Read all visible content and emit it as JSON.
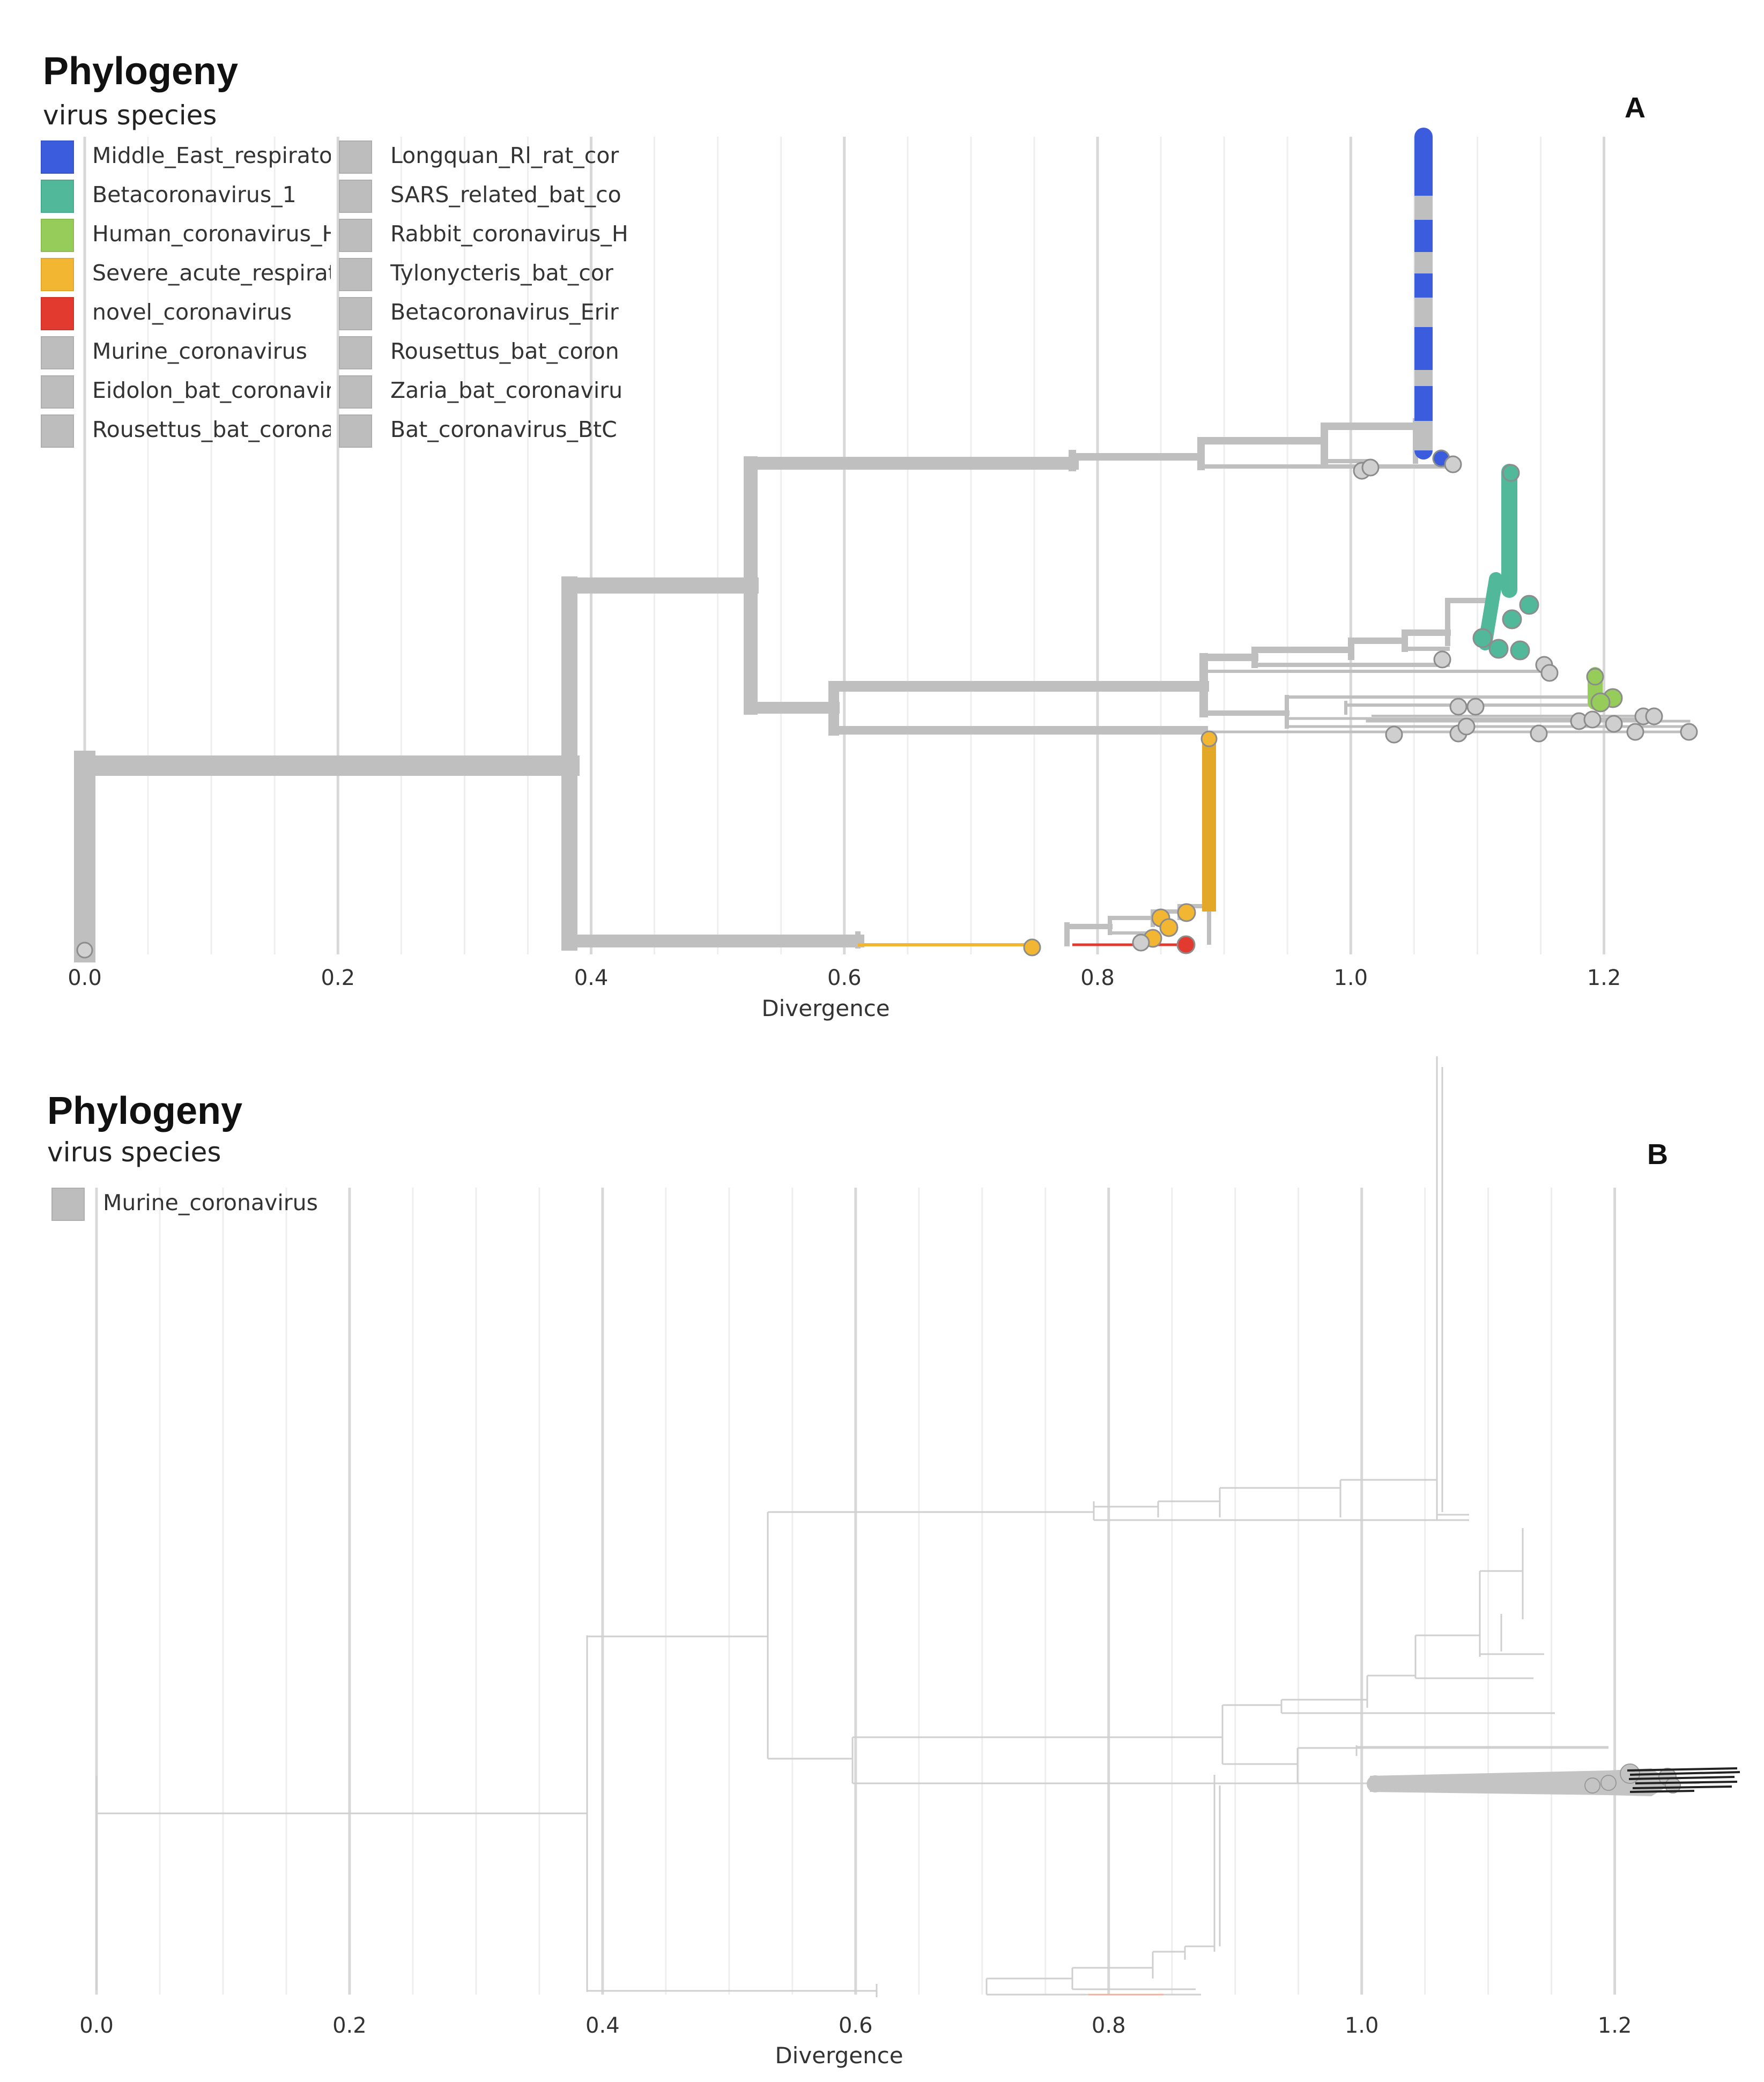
{
  "chart_data": [
    {
      "type": "phylogenetic-tree",
      "panel_label": "A",
      "title": "Phylogeny",
      "subtitle": "virus species",
      "xlabel": "Divergence",
      "xlim": [
        0.0,
        1.24
      ],
      "xticks": [
        "0.0",
        "0.2",
        "0.4",
        "0.6",
        "0.8",
        "1.0",
        "1.2"
      ],
      "grid": true,
      "legend_position": "top-left",
      "legend": [
        {
          "label": "Middle_East_respirato",
          "color": "#3b5ddd"
        },
        {
          "label": "Betacoronavirus_1",
          "color": "#52b89a"
        },
        {
          "label": "Human_coronavirus_H",
          "color": "#96cc5a"
        },
        {
          "label": "Severe_acute_respirat",
          "color": "#f2b632"
        },
        {
          "label": "novel_coronavirus",
          "color": "#e23a2e"
        },
        {
          "label": "Murine_coronavirus",
          "color": "#bdbdbd"
        },
        {
          "label": "Eidolon_bat_coronavir",
          "color": "#bdbdbd"
        },
        {
          "label": "Rousettus_bat_corona",
          "color": "#bdbdbd"
        },
        {
          "label": "Longquan_Rl_rat_cor",
          "color": "#bdbdbd"
        },
        {
          "label": "SARS_related_bat_co",
          "color": "#bdbdbd"
        },
        {
          "label": "Rabbit_coronavirus_H",
          "color": "#bdbdbd"
        },
        {
          "label": "Tylonycteris_bat_cor",
          "color": "#bdbdbd"
        },
        {
          "label": "Betacoronavirus_Erir",
          "color": "#bdbdbd"
        },
        {
          "label": "Rousettus_bat_coron",
          "color": "#bdbdbd"
        },
        {
          "label": "Zaria_bat_coronaviru",
          "color": "#bdbdbd"
        },
        {
          "label": "Bat_coronavirus_BtC",
          "color": "#bdbdbd"
        }
      ],
      "clades": [
        {
          "species": "Middle_East_respirato",
          "tip_divergence": 1.025,
          "color": "#3b5ddd"
        },
        {
          "species": "Betacoronavirus_1",
          "tip_divergence": 1.09,
          "color": "#52b89a"
        },
        {
          "species": "Human_coronavirus_H",
          "tip_divergence": 1.16,
          "color": "#96cc5a"
        },
        {
          "species": "Severe_acute_respirat",
          "tip_divergence": 0.86,
          "color": "#f2b632"
        },
        {
          "species": "novel_coronavirus",
          "tip_divergence": 0.845,
          "color": "#e23a2e"
        },
        {
          "species": "Murine_coronavirus",
          "tip_divergence": 1.23,
          "color": "#bdbdbd"
        }
      ]
    },
    {
      "type": "phylogenetic-tree",
      "panel_label": "B",
      "title": "Phylogeny",
      "subtitle": "virus species",
      "xlabel": "Divergence",
      "xlim": [
        0.0,
        1.24
      ],
      "xticks": [
        "0.0",
        "0.2",
        "0.4",
        "0.6",
        "0.8",
        "1.0",
        "1.2"
      ],
      "grid": true,
      "legend_position": "top-left",
      "legend": [
        {
          "label": "Murine_coronavirus",
          "color": "#bdbdbd"
        }
      ],
      "highlighted": {
        "species": "Murine_coronavirus",
        "tip_divergence_range": [
          0.97,
          1.22
        ]
      }
    }
  ]
}
